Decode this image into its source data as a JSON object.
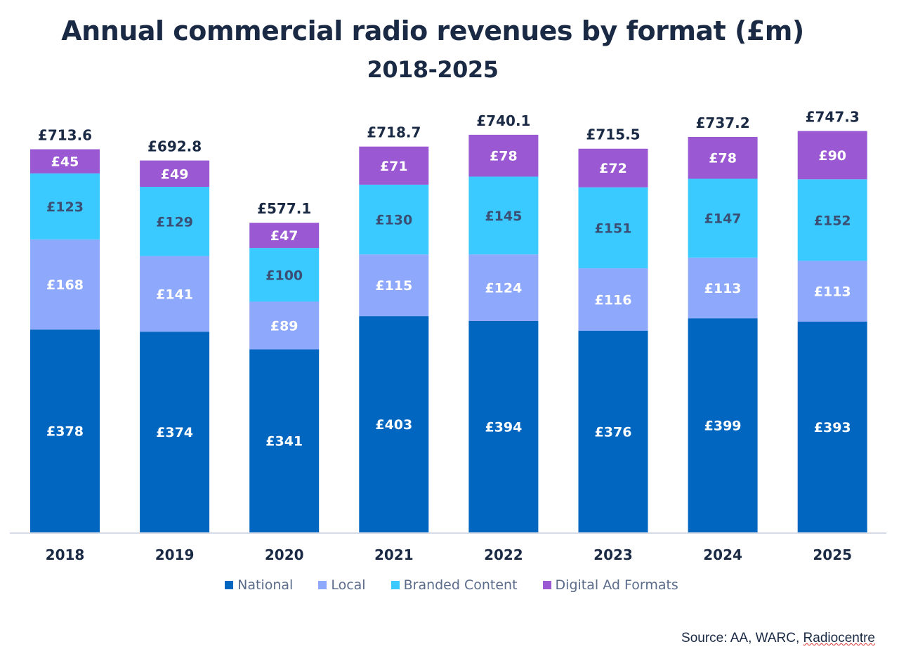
{
  "chart_data": {
    "type": "bar",
    "stacked": true,
    "title": "Annual commercial radio revenues by format (£m)",
    "subtitle": "2018-2025",
    "categories": [
      "2018",
      "2019",
      "2020",
      "2021",
      "2022",
      "2023",
      "2024",
      "2025"
    ],
    "series": [
      {
        "name": "National",
        "color": "#0066c0",
        "label_color": "#ffffff",
        "values": [
          378,
          374,
          341,
          403,
          394,
          376,
          399,
          393
        ],
        "labels": [
          "£378",
          "£374",
          "£341",
          "£403",
          "£394",
          "£376",
          "£399",
          "£393"
        ]
      },
      {
        "name": "Local",
        "color": "#8ea8fb",
        "label_color": "#ffffff",
        "values": [
          168,
          141,
          89,
          115,
          124,
          116,
          113,
          113
        ],
        "labels": [
          "£168",
          "£141",
          "£89",
          "£115",
          "£124",
          "£116",
          "£113",
          "£113"
        ]
      },
      {
        "name": "Branded Content",
        "color": "#3bcaff",
        "label_color": "#3a4f73",
        "values": [
          123,
          129,
          100,
          130,
          145,
          151,
          147,
          152
        ],
        "labels": [
          "£123",
          "£129",
          "£100",
          "£130",
          "£145",
          "£151",
          "£147",
          "£152"
        ]
      },
      {
        "name": "Digital Ad Formats",
        "color": "#9a59d3",
        "label_color": "#ffffff",
        "values": [
          45,
          49,
          47,
          71,
          78,
          72,
          78,
          90
        ],
        "labels": [
          "£45",
          "£49",
          "£47",
          "£71",
          "£78",
          "£72",
          "£78",
          "£90"
        ]
      }
    ],
    "totals": [
      713.6,
      692.8,
      577.1,
      718.7,
      740.1,
      715.5,
      737.2,
      747.3
    ],
    "total_labels": [
      "£713.6",
      "£692.8",
      "£577.1",
      "£718.7",
      "£740.1",
      "£715.5",
      "£737.2",
      "£747.3"
    ],
    "ylim": [
      0,
      750
    ],
    "grid": false,
    "legend_position": "bottom"
  },
  "source": {
    "prefix": "Source: AA, WARC, ",
    "underlined": "Radiocentre"
  },
  "colors": {
    "axis": "#c9cfe0",
    "text": "#1b2a44"
  }
}
